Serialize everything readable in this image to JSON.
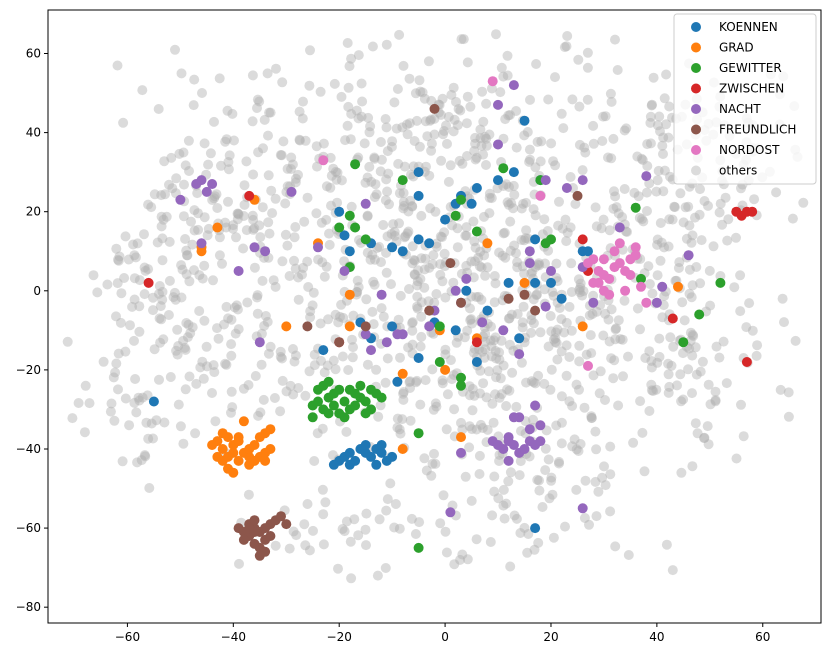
{
  "chart_data": {
    "type": "scatter",
    "xlim": [
      -75,
      71
    ],
    "ylim": [
      -84,
      71
    ],
    "xticks": [
      -60,
      -40,
      -20,
      0,
      20,
      40,
      60
    ],
    "yticks": [
      -80,
      -60,
      -40,
      -20,
      0,
      20,
      40,
      60
    ],
    "xtick_labels": [
      "−60",
      "−40",
      "−20",
      "0",
      "20",
      "40",
      "60"
    ],
    "ytick_labels": [
      "−80",
      "−60",
      "−40",
      "−20",
      "0",
      "20",
      "40",
      "60"
    ],
    "grid": false,
    "legend_position": "top-right",
    "background_cloud": {
      "name": "others",
      "color": "#b0b0b0",
      "opacity": 0.45,
      "approx_point_count": 1400,
      "clusters": [
        [
          0,
          5,
          22,
          20,
          650
        ],
        [
          -40,
          25,
          10,
          8,
          70
        ],
        [
          -55,
          0,
          8,
          10,
          70
        ],
        [
          -45,
          -20,
          10,
          12,
          70
        ],
        [
          45,
          20,
          10,
          14,
          90
        ],
        [
          45,
          -20,
          12,
          10,
          80
        ],
        [
          0,
          45,
          12,
          10,
          70
        ],
        [
          -30,
          45,
          14,
          10,
          60
        ],
        [
          30,
          45,
          14,
          10,
          60
        ],
        [
          5,
          -40,
          14,
          10,
          70
        ],
        [
          -15,
          -60,
          12,
          6,
          45
        ],
        [
          20,
          -55,
          12,
          8,
          45
        ],
        [
          55,
          35,
          8,
          8,
          30
        ],
        [
          -60,
          -30,
          6,
          8,
          30
        ],
        [
          25,
          -10,
          12,
          10,
          60
        ]
      ]
    },
    "series": [
      {
        "name": "KOENNEN",
        "color": "#1f77b4",
        "points": [
          [
            -20,
            -43
          ],
          [
            -19,
            -42
          ],
          [
            -18,
            -41
          ],
          [
            -17,
            -43
          ],
          [
            -16,
            -40
          ],
          [
            -15,
            -41
          ],
          [
            -14,
            -42
          ],
          [
            -13,
            -40
          ],
          [
            -12,
            -41
          ],
          [
            -11,
            -43
          ],
          [
            -10,
            -42
          ],
          [
            -21,
            -44
          ],
          [
            -18,
            -44
          ],
          [
            -13,
            -44
          ],
          [
            -12,
            -39
          ],
          [
            -15,
            -39
          ],
          [
            -14,
            -12
          ],
          [
            -16,
            -8
          ],
          [
            -23,
            -15
          ],
          [
            -10,
            -9
          ],
          [
            -5,
            -17
          ],
          [
            -2,
            -8
          ],
          [
            2,
            -10
          ],
          [
            8,
            -5
          ],
          [
            12,
            2
          ],
          [
            14,
            -12
          ],
          [
            -9,
            -23
          ],
          [
            -18,
            10
          ],
          [
            -14,
            12
          ],
          [
            -19,
            14
          ],
          [
            -20,
            20
          ],
          [
            -10,
            11
          ],
          [
            -8,
            10
          ],
          [
            -5,
            13
          ],
          [
            -3,
            12
          ],
          [
            0,
            18
          ],
          [
            2,
            22
          ],
          [
            3,
            24
          ],
          [
            6,
            26
          ],
          [
            5,
            22
          ],
          [
            -5,
            24
          ],
          [
            -5,
            30
          ],
          [
            10,
            28
          ],
          [
            13,
            30
          ],
          [
            18,
            28
          ],
          [
            20,
            2
          ],
          [
            22,
            -2
          ],
          [
            17,
            13
          ],
          [
            17,
            2
          ],
          [
            15,
            43
          ],
          [
            26,
            10
          ],
          [
            27,
            10
          ],
          [
            17,
            -60
          ],
          [
            -55,
            -28
          ],
          [
            4,
            0
          ],
          [
            6,
            -18
          ]
        ]
      },
      {
        "name": "GRAD",
        "color": "#ff7f0e",
        "points": [
          [
            -43,
            -38
          ],
          [
            -42,
            -40
          ],
          [
            -41,
            -37
          ],
          [
            -40,
            -39
          ],
          [
            -39,
            -38
          ],
          [
            -38,
            -41
          ],
          [
            -37,
            -42
          ],
          [
            -36,
            -43
          ],
          [
            -35,
            -42
          ],
          [
            -34,
            -41
          ],
          [
            -33,
            -40
          ],
          [
            -42,
            -43
          ],
          [
            -41,
            -45
          ],
          [
            -40,
            -46
          ],
          [
            -39,
            -37
          ],
          [
            -38,
            -33
          ],
          [
            -34,
            -36
          ],
          [
            -33,
            -35
          ],
          [
            -35,
            -37
          ],
          [
            -36,
            -39
          ],
          [
            -43,
            -42
          ],
          [
            -40,
            -41
          ],
          [
            -42,
            -36
          ],
          [
            -37,
            -40
          ],
          [
            -34,
            -43
          ],
          [
            -41,
            -42
          ],
          [
            -39,
            -43
          ],
          [
            -37,
            -44
          ],
          [
            -44,
            -39
          ],
          [
            -46,
            10
          ],
          [
            -46,
            11
          ],
          [
            -43,
            16
          ],
          [
            -36,
            23
          ],
          [
            -24,
            12
          ],
          [
            -18,
            -1
          ],
          [
            -18,
            -9
          ],
          [
            -8,
            -21
          ],
          [
            -8,
            -40
          ],
          [
            -1,
            -10
          ],
          [
            0,
            -20
          ],
          [
            3,
            -37
          ],
          [
            6,
            -12
          ],
          [
            8,
            12
          ],
          [
            15,
            2
          ],
          [
            26,
            -9
          ],
          [
            44,
            1
          ],
          [
            -30,
            -9
          ]
        ]
      },
      {
        "name": "GEWITTER",
        "color": "#2ca02c",
        "points": [
          [
            -25,
            -29
          ],
          [
            -24,
            -28
          ],
          [
            -23,
            -30
          ],
          [
            -22,
            -27
          ],
          [
            -21,
            -29
          ],
          [
            -20,
            -31
          ],
          [
            -19,
            -28
          ],
          [
            -18,
            -30
          ],
          [
            -17,
            -29
          ],
          [
            -16,
            -27
          ],
          [
            -15,
            -28
          ],
          [
            -14,
            -30
          ],
          [
            -24,
            -25
          ],
          [
            -23,
            -24
          ],
          [
            -22,
            -23
          ],
          [
            -25,
            -32
          ],
          [
            -22,
            -31
          ],
          [
            -20,
            -25
          ],
          [
            -17,
            -26
          ],
          [
            -16,
            -24
          ],
          [
            -13,
            -26
          ],
          [
            -12,
            -27
          ],
          [
            -15,
            -31
          ],
          [
            -19,
            -32
          ],
          [
            -18,
            -25
          ],
          [
            -21,
            -26
          ],
          [
            -14,
            -25
          ],
          [
            -20,
            16
          ],
          [
            -18,
            19
          ],
          [
            -17,
            16
          ],
          [
            -15,
            13
          ],
          [
            -17,
            32
          ],
          [
            -8,
            28
          ],
          [
            2,
            19
          ],
          [
            3,
            23
          ],
          [
            6,
            15
          ],
          [
            11,
            31
          ],
          [
            18,
            28
          ],
          [
            19,
            12
          ],
          [
            20,
            13
          ],
          [
            -1,
            -9
          ],
          [
            -1,
            -18
          ],
          [
            3,
            -22
          ],
          [
            3,
            -24
          ],
          [
            -5,
            -36
          ],
          [
            -5,
            -65
          ],
          [
            36,
            21
          ],
          [
            37,
            3
          ],
          [
            52,
            2
          ],
          [
            48,
            -6
          ],
          [
            45,
            -13
          ],
          [
            -18,
            6
          ]
        ]
      },
      {
        "name": "ZWISCHEN",
        "color": "#d62728",
        "points": [
          [
            -37,
            24
          ],
          [
            -56,
            2
          ],
          [
            -20,
            -13
          ],
          [
            6,
            -13
          ],
          [
            27,
            5
          ],
          [
            26,
            13
          ],
          [
            43,
            -7
          ],
          [
            55,
            20
          ],
          [
            56,
            19
          ],
          [
            57,
            20
          ],
          [
            57,
            -18
          ],
          [
            58,
            20
          ]
        ]
      },
      {
        "name": "NACHT",
        "color": "#9467bd",
        "points": [
          [
            9,
            -38
          ],
          [
            10,
            -39
          ],
          [
            11,
            -40
          ],
          [
            12,
            -38
          ],
          [
            13,
            -39
          ],
          [
            14,
            -41
          ],
          [
            15,
            -40
          ],
          [
            16,
            -38
          ],
          [
            17,
            -39
          ],
          [
            18,
            -38
          ],
          [
            12,
            -37
          ],
          [
            14,
            -32
          ],
          [
            13,
            -32
          ],
          [
            16,
            -35
          ],
          [
            12,
            -43
          ],
          [
            18,
            -34
          ],
          [
            17,
            -29
          ],
          [
            -50,
            23
          ],
          [
            -47,
            27
          ],
          [
            -46,
            28
          ],
          [
            -45,
            25
          ],
          [
            -44,
            27
          ],
          [
            -46,
            12
          ],
          [
            -39,
            5
          ],
          [
            -36,
            11
          ],
          [
            -34,
            10
          ],
          [
            -29,
            25
          ],
          [
            -24,
            11
          ],
          [
            -19,
            5
          ],
          [
            -15,
            22
          ],
          [
            -12,
            -1
          ],
          [
            -15,
            -11
          ],
          [
            -14,
            -15
          ],
          [
            -11,
            -13
          ],
          [
            -9,
            -11
          ],
          [
            -8,
            -11
          ],
          [
            -3,
            -9
          ],
          [
            -2,
            -5
          ],
          [
            2,
            0
          ],
          [
            3,
            -3
          ],
          [
            4,
            3
          ],
          [
            7,
            -8
          ],
          [
            11,
            -10
          ],
          [
            14,
            -16
          ],
          [
            16,
            10
          ],
          [
            16,
            7
          ],
          [
            19,
            -4
          ],
          [
            20,
            5
          ],
          [
            23,
            26
          ],
          [
            26,
            28
          ],
          [
            26,
            6
          ],
          [
            28,
            -3
          ],
          [
            33,
            16
          ],
          [
            38,
            29
          ],
          [
            40,
            -3
          ],
          [
            41,
            1
          ],
          [
            46,
            9
          ],
          [
            10,
            37
          ],
          [
            10,
            47
          ],
          [
            13,
            52
          ],
          [
            19,
            28
          ],
          [
            26,
            -55
          ],
          [
            3,
            -41
          ],
          [
            1,
            -56
          ],
          [
            -35,
            -13
          ]
        ]
      },
      {
        "name": "FREUNDLICH",
        "color": "#8c564b",
        "points": [
          [
            -39,
            -60
          ],
          [
            -38,
            -61
          ],
          [
            -37,
            -62
          ],
          [
            -36,
            -60
          ],
          [
            -35,
            -61
          ],
          [
            -34,
            -63
          ],
          [
            -33,
            -62
          ],
          [
            -36,
            -64
          ],
          [
            -35,
            -65
          ],
          [
            -34,
            -66
          ],
          [
            -37,
            -59
          ],
          [
            -36,
            -58
          ],
          [
            -33,
            -59
          ],
          [
            -32,
            -58
          ],
          [
            -31,
            -57
          ],
          [
            -30,
            -59
          ],
          [
            -38,
            -63
          ],
          [
            -35,
            -67
          ],
          [
            -36,
            -61
          ],
          [
            -34,
            -60
          ],
          [
            -37,
            -60
          ],
          [
            -2,
            46
          ],
          [
            1,
            7
          ],
          [
            3,
            -3
          ],
          [
            12,
            -2
          ],
          [
            15,
            -1
          ],
          [
            17,
            -5
          ],
          [
            25,
            24
          ],
          [
            -20,
            -13
          ],
          [
            -15,
            -9
          ],
          [
            -26,
            -9
          ],
          [
            -3,
            -5
          ]
        ]
      },
      {
        "name": "NORDOST",
        "color": "#e377c2",
        "points": [
          [
            -23,
            33
          ],
          [
            9,
            53
          ],
          [
            18,
            24
          ],
          [
            27,
            7
          ],
          [
            28,
            8
          ],
          [
            29,
            5
          ],
          [
            30,
            4
          ],
          [
            31,
            3
          ],
          [
            32,
            6
          ],
          [
            33,
            7
          ],
          [
            34,
            5
          ],
          [
            35,
            8
          ],
          [
            36,
            9
          ],
          [
            30,
            0
          ],
          [
            31,
            -1
          ],
          [
            32,
            10
          ],
          [
            34,
            0
          ],
          [
            33,
            12
          ],
          [
            37,
            1
          ],
          [
            38,
            -3
          ],
          [
            29,
            2
          ],
          [
            27,
            -19
          ],
          [
            35,
            4
          ],
          [
            36,
            11
          ],
          [
            30,
            8
          ],
          [
            28,
            2
          ]
        ]
      }
    ]
  }
}
